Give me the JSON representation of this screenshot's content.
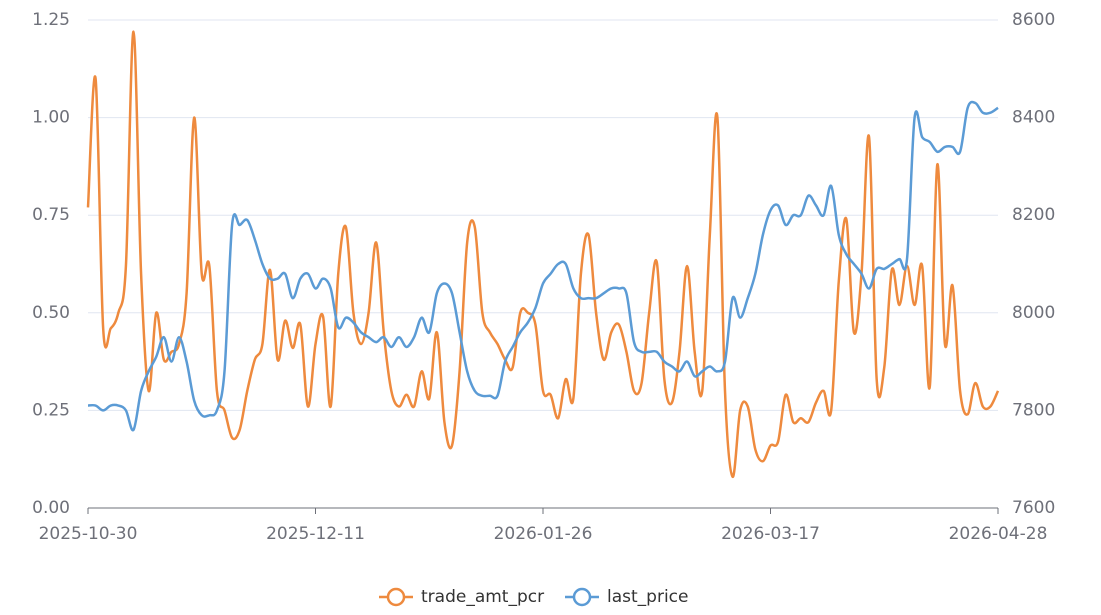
{
  "chart_data": {
    "type": "line",
    "categories": [
      "2025-10-30",
      null,
      null,
      null,
      null,
      null,
      null,
      null,
      null,
      null,
      null,
      null,
      null,
      null,
      null,
      null,
      null,
      null,
      null,
      null,
      null,
      null,
      null,
      null,
      null,
      null,
      null,
      null,
      null,
      null,
      "2025-12-11",
      null,
      null,
      null,
      null,
      null,
      null,
      null,
      null,
      null,
      null,
      null,
      null,
      null,
      null,
      null,
      null,
      null,
      null,
      null,
      null,
      null,
      null,
      null,
      null,
      null,
      null,
      null,
      null,
      null,
      "2026-01-26",
      null,
      null,
      null,
      null,
      null,
      null,
      null,
      null,
      null,
      null,
      null,
      null,
      null,
      null,
      null,
      null,
      null,
      null,
      null,
      null,
      null,
      null,
      null,
      null,
      null,
      null,
      null,
      null,
      null,
      "2026-03-17",
      null,
      null,
      null,
      null,
      null,
      null,
      null,
      null,
      null,
      null,
      null,
      null,
      null,
      null,
      null,
      null,
      null,
      null,
      null,
      null,
      null,
      null,
      null,
      null,
      null,
      null,
      null,
      null,
      null,
      "2026-04-28"
    ],
    "series": [
      {
        "name": "trade_amt_pcr",
        "color": "#ee8a3e",
        "values": [
          0.77,
          1.1,
          0.46,
          0.46,
          0.5,
          0.62,
          1.22,
          0.6,
          0.3,
          0.5,
          0.38,
          0.4,
          0.42,
          0.55,
          1.0,
          0.6,
          0.62,
          0.3,
          0.25,
          0.18,
          0.2,
          0.3,
          0.38,
          0.42,
          0.61,
          0.38,
          0.48,
          0.41,
          0.47,
          0.26,
          0.42,
          0.49,
          0.26,
          0.6,
          0.72,
          0.5,
          0.42,
          0.5,
          0.68,
          0.45,
          0.3,
          0.26,
          0.29,
          0.26,
          0.35,
          0.28,
          0.45,
          0.22,
          0.16,
          0.35,
          0.68,
          0.72,
          0.5,
          0.45,
          0.42,
          0.38,
          0.36,
          0.5,
          0.5,
          0.47,
          0.3,
          0.29,
          0.23,
          0.33,
          0.28,
          0.6,
          0.7,
          0.5,
          0.38,
          0.45,
          0.47,
          0.4,
          0.3,
          0.32,
          0.5,
          0.63,
          0.33,
          0.27,
          0.4,
          0.62,
          0.4,
          0.3,
          0.7,
          1.0,
          0.3,
          0.08,
          0.25,
          0.26,
          0.15,
          0.12,
          0.16,
          0.17,
          0.29,
          0.22,
          0.23,
          0.22,
          0.27,
          0.3,
          0.25,
          0.58,
          0.74,
          0.45,
          0.6,
          0.95,
          0.33,
          0.36,
          0.61,
          0.52,
          0.62,
          0.52,
          0.62,
          0.31,
          0.88,
          0.42,
          0.57,
          0.3,
          0.24,
          0.32,
          0.26,
          0.26,
          0.3
        ]
      },
      {
        "name": "last_price",
        "color": "#5b9bd5",
        "axis": "y2",
        "values": [
          7810,
          7810,
          7800,
          7810,
          7810,
          7800,
          7760,
          7840,
          7880,
          7910,
          7950,
          7900,
          7950,
          7900,
          7820,
          7790,
          7790,
          7800,
          7880,
          8180,
          8180,
          8190,
          8150,
          8100,
          8070,
          8070,
          8080,
          8030,
          8070,
          8080,
          8050,
          8070,
          8050,
          7970,
          7990,
          7980,
          7960,
          7950,
          7940,
          7950,
          7930,
          7950,
          7930,
          7950,
          7990,
          7960,
          8040,
          8060,
          8040,
          7960,
          7880,
          7840,
          7830,
          7830,
          7830,
          7900,
          7930,
          7960,
          7980,
          8010,
          8060,
          8080,
          8100,
          8100,
          8050,
          8030,
          8030,
          8030,
          8040,
          8050,
          8050,
          8040,
          7940,
          7920,
          7920,
          7920,
          7900,
          7890,
          7880,
          7900,
          7870,
          7880,
          7890,
          7880,
          7900,
          8030,
          7990,
          8030,
          8080,
          8160,
          8210,
          8220,
          8180,
          8200,
          8200,
          8240,
          8220,
          8200,
          8260,
          8160,
          8120,
          8100,
          8080,
          8050,
          8090,
          8090,
          8100,
          8110,
          8110,
          8400,
          8360,
          8350,
          8330,
          8340,
          8340,
          8330,
          8420,
          8430,
          8410,
          8410,
          8420
        ]
      }
    ],
    "ylim": [
      0,
      1.25
    ],
    "yticks": [
      {
        "value": 0,
        "label": "0.00"
      },
      {
        "value": 0.25,
        "label": "0.25"
      },
      {
        "value": 0.5,
        "label": "0.50"
      },
      {
        "value": 0.75,
        "label": "0.75"
      },
      {
        "value": 1,
        "label": "1.00"
      },
      {
        "value": 1.25,
        "label": "1.25"
      }
    ],
    "y2lim": [
      7600,
      8600
    ],
    "y2ticks": [
      7600,
      7800,
      8000,
      8200,
      8400,
      8600
    ],
    "grid": true,
    "legend": "bottom",
    "smooth": true
  }
}
